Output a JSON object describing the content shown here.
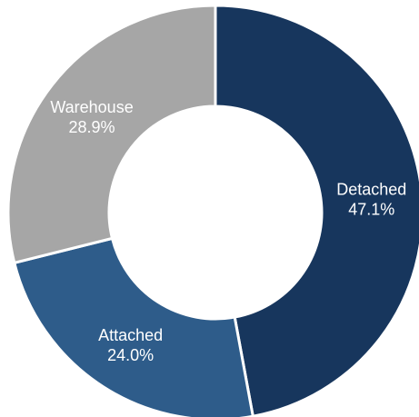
{
  "chart_data": {
    "type": "pie",
    "variant": "donut",
    "title": "",
    "legend": "none",
    "slices": [
      {
        "label": "Detached",
        "value": 47.1,
        "value_label": "47.1%",
        "color": "#17365d"
      },
      {
        "label": "Attached",
        "value": 24.0,
        "value_label": "24.0%",
        "color": "#2e5c8a"
      },
      {
        "label": "Warehouse",
        "value": 28.9,
        "value_label": "28.9%",
        "color": "#a6a6a6"
      }
    ],
    "slice_border_color": "#ffffff",
    "background": "#ffffff"
  }
}
